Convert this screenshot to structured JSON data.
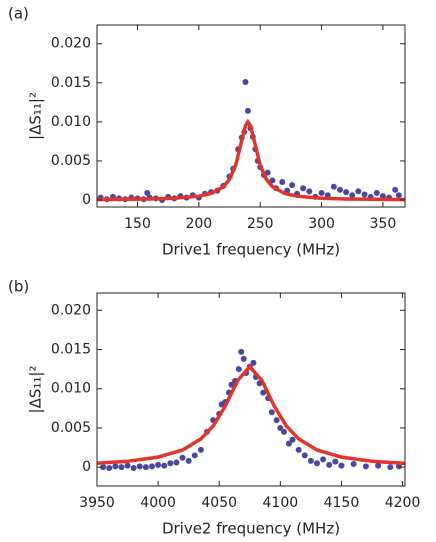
{
  "chart_data": [
    {
      "type": "scatter",
      "panel_label": "(a)",
      "xlabel": "Drive1 frequency (MHz)",
      "ylabel": "|ΔS₁₁|²",
      "xlim": [
        117,
        368
      ],
      "xticks": [
        150,
        200,
        250,
        300,
        350
      ],
      "ylim": [
        -0.0009,
        0.0224
      ],
      "yticks": [
        0,
        0.005,
        {
          "value": 0.01,
          "label": "0.010"
        },
        0.015,
        {
          "value": 0.02,
          "label": "0.020"
        }
      ],
      "series": [
        {
          "type": "scatter",
          "color": "#4a479e",
          "x": [
            120,
            125,
            130,
            135,
            140,
            145,
            150,
            155,
            158,
            160,
            165,
            170,
            175,
            180,
            185,
            190,
            195,
            200,
            205,
            210,
            215,
            220,
            225,
            228,
            232,
            235,
            237,
            238,
            240,
            242,
            244,
            246,
            248,
            250,
            253,
            256,
            260,
            263,
            268,
            272,
            276,
            280,
            285,
            290,
            295,
            300,
            305,
            310,
            315,
            320,
            325,
            330,
            335,
            340,
            345,
            350,
            355,
            360,
            363
          ],
          "values": [
            0.0003,
            0.0001,
            0.0004,
            0.0002,
            0.0001,
            0.0003,
            0.0002,
            0.0001,
            0.0009,
            0.0003,
            0.0002,
            0.0,
            0.0004,
            0.0002,
            0.0005,
            0.0003,
            0.0006,
            0.0003,
            0.0008,
            0.001,
            0.0012,
            0.0018,
            0.003,
            0.004,
            0.0065,
            0.008,
            0.0087,
            0.0151,
            0.0114,
            0.0092,
            0.0081,
            0.0065,
            0.005,
            0.0042,
            0.0032,
            0.0035,
            0.0025,
            0.0015,
            0.0023,
            0.0012,
            0.0019,
            0.0008,
            0.0015,
            0.0011,
            0.0004,
            0.0009,
            0.0006,
            0.0017,
            0.0013,
            0.001,
            0.0006,
            0.0011,
            0.0007,
            0.0004,
            0.0009,
            0.0005,
            0.0003,
            0.0013,
            0.0006
          ]
        },
        {
          "type": "line",
          "color": "#e5332a",
          "x": [
            117,
            140,
            160,
            180,
            200,
            210,
            220,
            225,
            230,
            235,
            238,
            240,
            242,
            245,
            250,
            255,
            260,
            270,
            280,
            300,
            320,
            340,
            368
          ],
          "values": [
            5.3e-05,
            8e-05,
            0.000125,
            0.00022,
            0.00048,
            0.00083,
            0.00168,
            0.00265,
            0.00447,
            0.00764,
            0.00953,
            0.01,
            0.00953,
            0.00764,
            0.00447,
            0.00265,
            0.00168,
            0.00083,
            0.00048,
            0.00022,
            0.000125,
            8e-05,
            4.9e-05
          ]
        }
      ]
    },
    {
      "type": "scatter",
      "panel_label": "(b)",
      "xlabel": "Drive2 frequency (MHz)",
      "ylabel": "|ΔS₁₁|²",
      "xlim": [
        3950,
        4202
      ],
      "xticks": [
        3950,
        4000,
        4050,
        4100,
        4150,
        4200
      ],
      "ylim": [
        -0.0024,
        0.0222
      ],
      "yticks": [
        0,
        0.005,
        {
          "value": 0.01,
          "label": "0.010"
        },
        0.015,
        {
          "value": 0.02,
          "label": "0.020"
        }
      ],
      "series": [
        {
          "type": "scatter",
          "color": "#4a479e",
          "x": [
            3955,
            3960,
            3965,
            3970,
            3975,
            3980,
            3985,
            3990,
            3995,
            4000,
            4005,
            4010,
            4015,
            4020,
            4025,
            4030,
            4035,
            4040,
            4045,
            4050,
            4052,
            4055,
            4058,
            4060,
            4063,
            4066,
            4068,
            4070,
            4072,
            4075,
            4078,
            4080,
            4083,
            4086,
            4090,
            4093,
            4097,
            4100,
            4103,
            4107,
            4110,
            4115,
            4120,
            4125,
            4130,
            4135,
            4140,
            4145,
            4150,
            4160,
            4170,
            4180,
            4190,
            4197
          ],
          "values": [
            0.0,
            -0.0001,
            0.0001,
            0.0,
            0.0002,
            -0.0001,
            0.0001,
            0.0,
            0.0001,
            0.0003,
            0.0002,
            0.0005,
            0.0006,
            0.0012,
            0.0008,
            0.0015,
            0.0022,
            0.0045,
            0.006,
            0.0068,
            0.008,
            0.0083,
            0.0095,
            0.0105,
            0.011,
            0.0125,
            0.0147,
            0.0138,
            0.012,
            0.0128,
            0.0133,
            0.0115,
            0.0107,
            0.0095,
            0.0088,
            0.007,
            0.006,
            0.005,
            0.0045,
            0.003,
            0.0035,
            0.0022,
            0.0015,
            0.0008,
            0.0005,
            0.001,
            0.0003,
            0.0007,
            0.0002,
            0.0004,
            0.0001,
            0.0002,
            0.0,
            0.0001
          ]
        },
        {
          "type": "line",
          "color": "#e5332a",
          "x": [
            3950,
            3975,
            4000,
            4020,
            4035,
            4045,
            4055,
            4065,
            4075,
            4085,
            4095,
            4105,
            4115,
            4130,
            4150,
            4175,
            4202
          ],
          "values": [
            0.00049,
            0.00075,
            0.00128,
            0.00219,
            0.0036,
            0.00525,
            0.0078,
            0.01103,
            0.0128,
            0.01103,
            0.0078,
            0.00525,
            0.0036,
            0.00219,
            0.00128,
            0.00075,
            0.00048
          ]
        }
      ]
    }
  ]
}
